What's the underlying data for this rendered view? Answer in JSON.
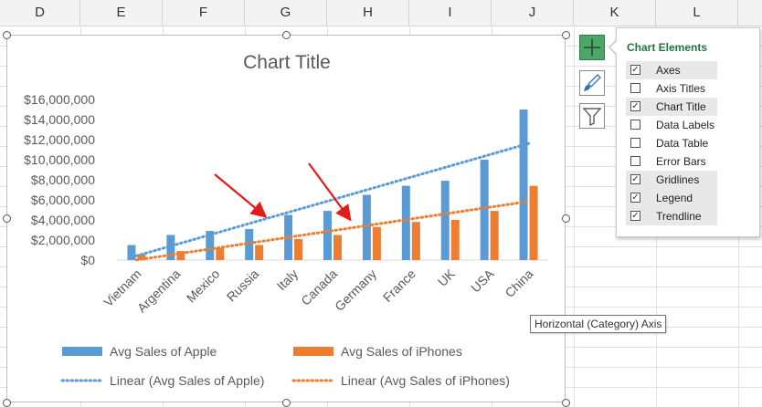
{
  "spreadsheet": {
    "columns": [
      "D",
      "E",
      "F",
      "G",
      "H",
      "I",
      "J",
      "K",
      "L"
    ]
  },
  "chart": {
    "title": "Chart Title",
    "series_colors": {
      "apple": "#5b9bd5",
      "iphone": "#ed7d31",
      "arrow": "#e31b1b"
    },
    "legend": {
      "apple": "Avg Sales of Apple",
      "iphone": "Avg Sales of iPhones",
      "apple_trend": "Linear (Avg Sales of Apple)",
      "iphone_trend": "Linear (Avg Sales of iPhones)"
    }
  },
  "chart_data": {
    "type": "bar",
    "title": "Chart Title",
    "categories": [
      "Vietnam",
      "Argentina",
      "Mexico",
      "Russia",
      "Italy",
      "Canada",
      "Germany",
      "France",
      "UK",
      "USA",
      "China"
    ],
    "series": [
      {
        "name": "Avg Sales of Apple",
        "values": [
          1500000,
          2500000,
          2900000,
          3100000,
          4500000,
          4900000,
          6500000,
          7400000,
          7900000,
          10000000,
          15000000
        ]
      },
      {
        "name": "Avg Sales of iPhones",
        "values": [
          600000,
          900000,
          1200000,
          1500000,
          2100000,
          2500000,
          3300000,
          3800000,
          4000000,
          4900000,
          7400000
        ]
      }
    ],
    "trendlines": [
      {
        "name": "Linear (Avg Sales of Apple)",
        "type": "linear"
      },
      {
        "name": "Linear (Avg Sales of iPhones)",
        "type": "linear"
      }
    ],
    "y_ticks": [
      "$0",
      "$2,000,000",
      "$4,000,000",
      "$6,000,000",
      "$8,000,000",
      "$10,000,000",
      "$12,000,000",
      "$14,000,000",
      "$16,000,000"
    ],
    "ylim": [
      0,
      16000000
    ],
    "grid": false,
    "legend_position": "bottom"
  },
  "side_buttons": [
    "chart-elements-button",
    "chart-styles-button",
    "chart-filters-button"
  ],
  "chart_elements_panel": {
    "title": "Chart Elements",
    "items": [
      {
        "label": "Axes",
        "checked": true
      },
      {
        "label": "Axis Titles",
        "checked": false
      },
      {
        "label": "Chart Title",
        "checked": true
      },
      {
        "label": "Data Labels",
        "checked": false
      },
      {
        "label": "Data Table",
        "checked": false
      },
      {
        "label": "Error Bars",
        "checked": false
      },
      {
        "label": "Gridlines",
        "checked": true
      },
      {
        "label": "Legend",
        "checked": true
      },
      {
        "label": "Trendline",
        "checked": true
      }
    ]
  },
  "tooltip": "Horizontal (Category) Axis"
}
